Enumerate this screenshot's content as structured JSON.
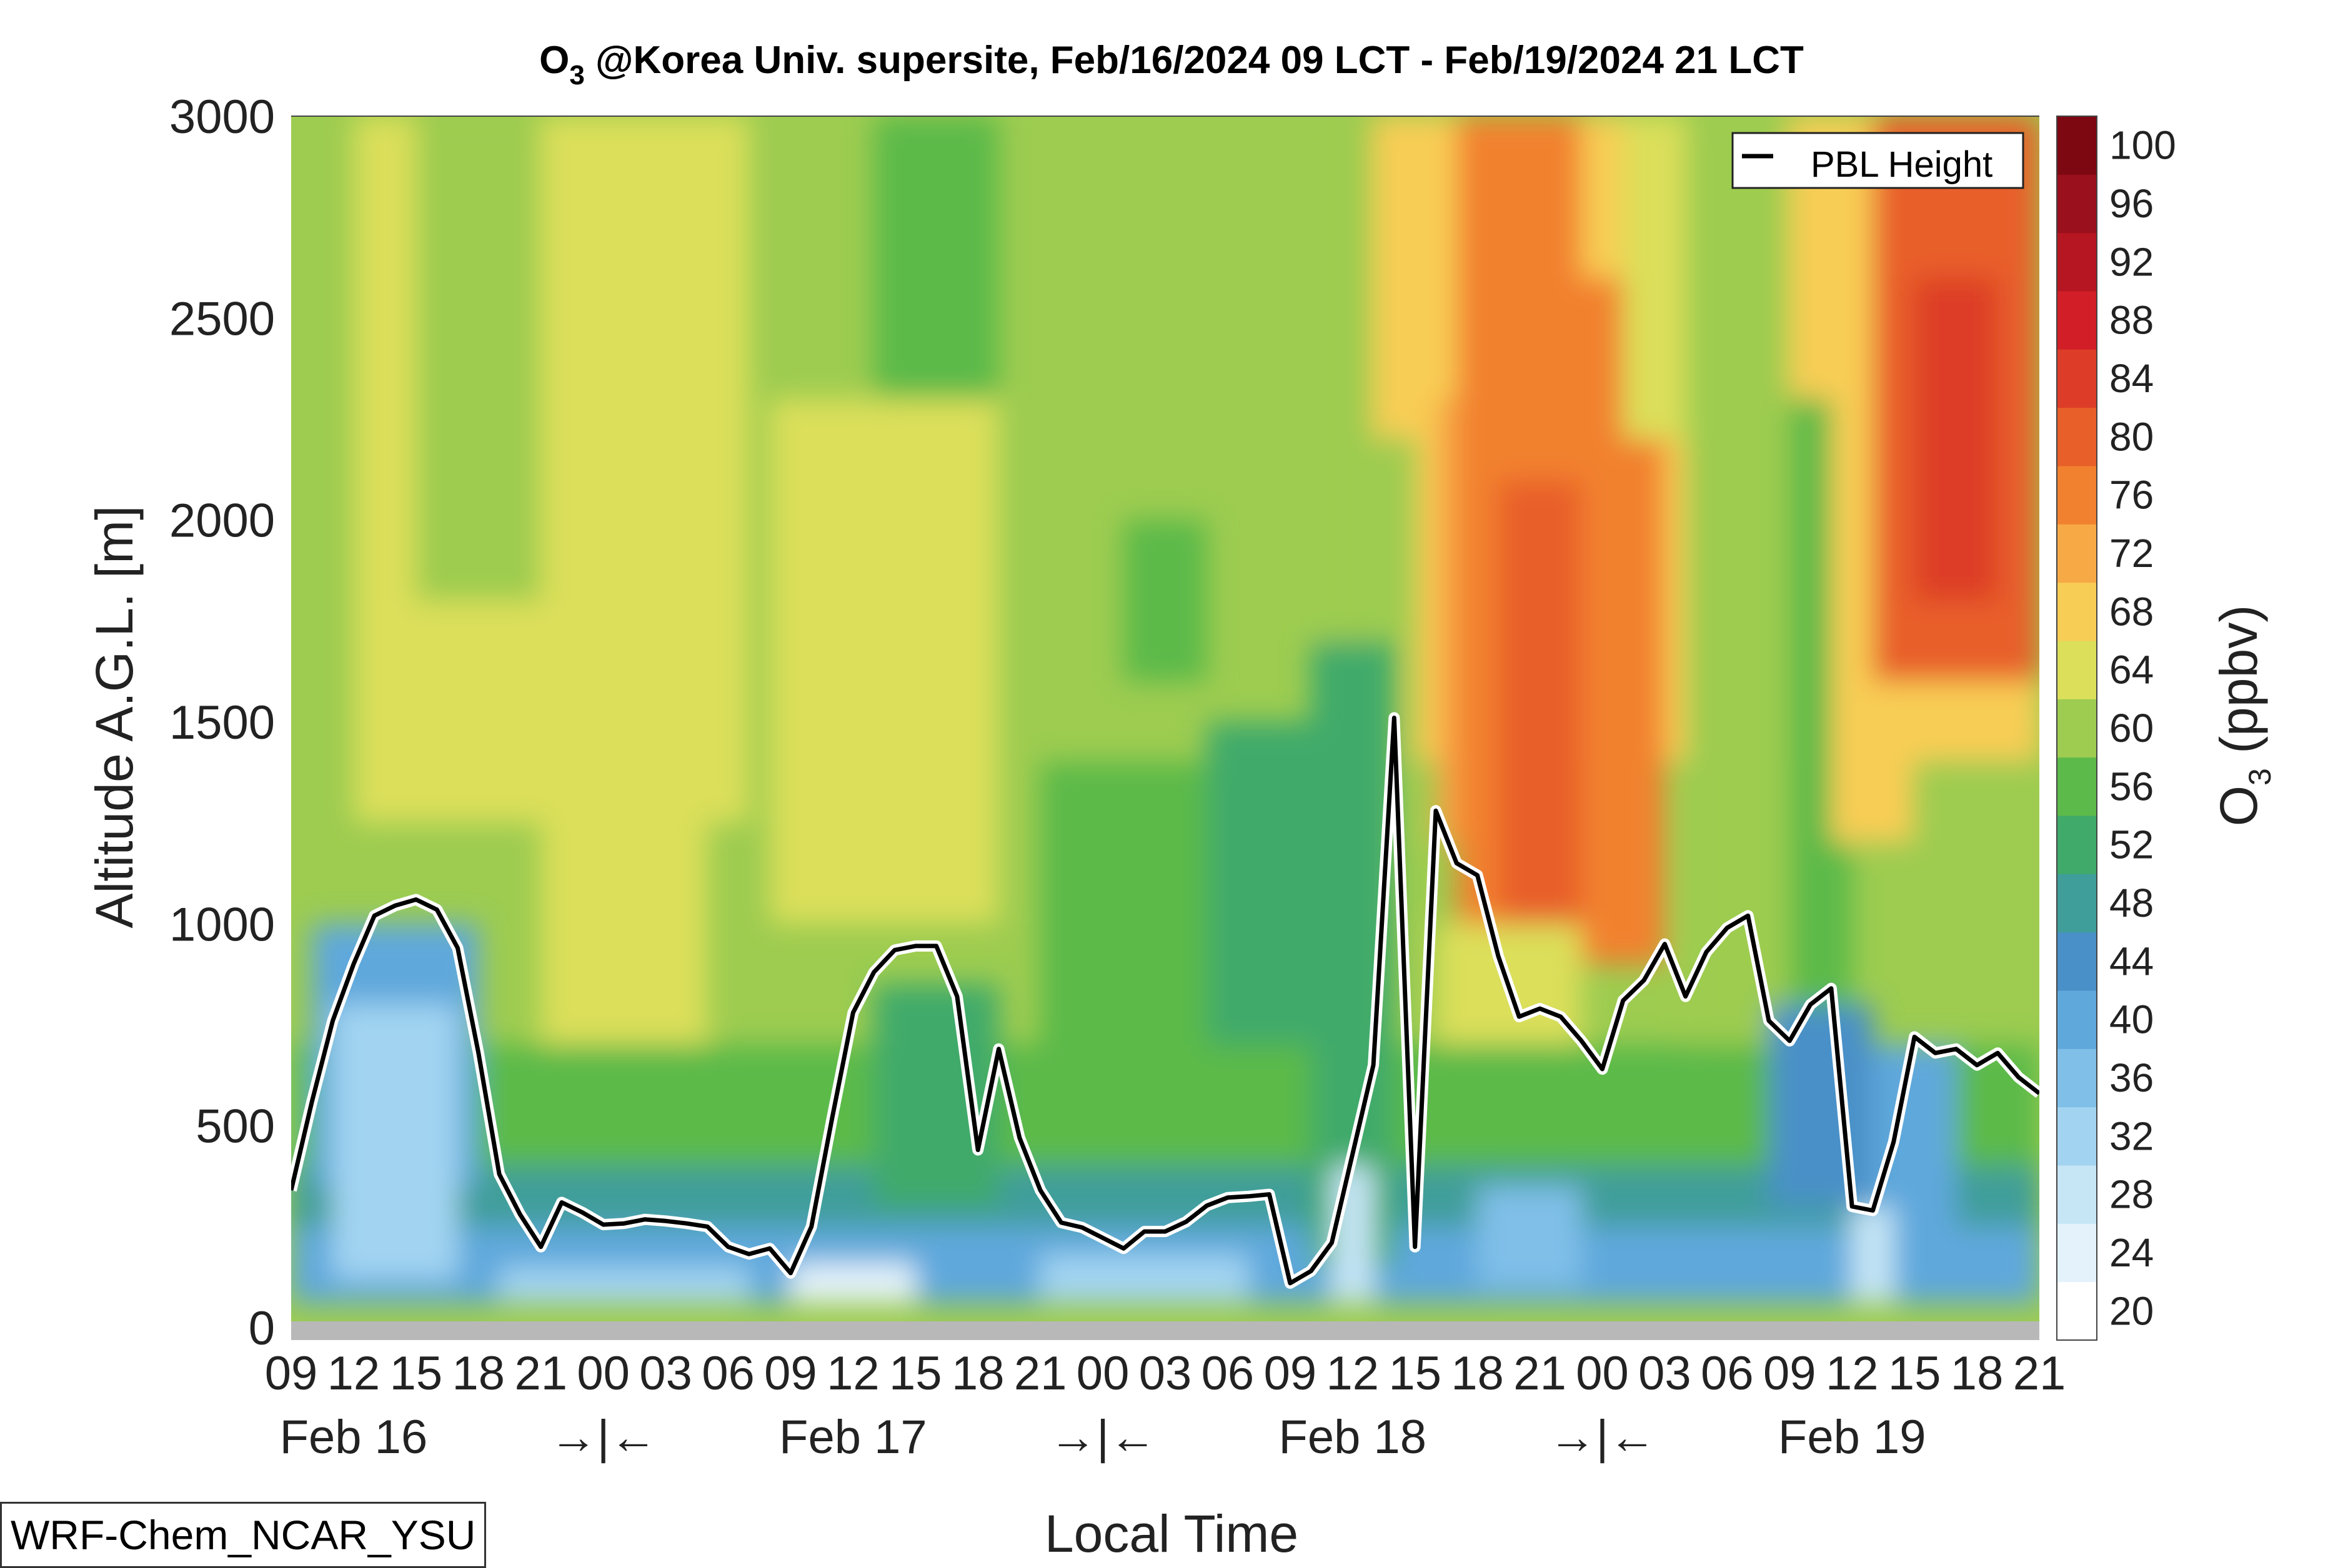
{
  "chart_data": {
    "type": "heatmap",
    "title": {
      "species": "O",
      "subscript": "3",
      "rest": " @Korea Univ. supersite, Feb/16/2024 09 LCT - Feb/19/2024 21 LCT"
    },
    "xlabel": "Local Time",
    "ylabel": "Altitude A.G.L. [m]",
    "colorbar_label": {
      "species": "O",
      "subscript": "3",
      "unit": " (ppbv)"
    },
    "x_tick_labels": [
      "09",
      "12",
      "15",
      "18",
      "21",
      "00",
      "03",
      "06",
      "09",
      "12",
      "15",
      "18",
      "21",
      "00",
      "03",
      "06",
      "09",
      "12",
      "15",
      "18",
      "21",
      "00",
      "03",
      "06",
      "09",
      "12",
      "15",
      "18",
      "21"
    ],
    "date_labels": [
      "Feb 16",
      "→|←",
      "Feb 17",
      "→|←",
      "Feb 18",
      "→|←",
      "Feb 19"
    ],
    "x_range_hours": [
      0,
      84
    ],
    "ylim": [
      0,
      3000
    ],
    "y_ticks": [
      0,
      500,
      1000,
      1500,
      2000,
      2500,
      3000
    ],
    "colorbar": {
      "levels": [
        20,
        24,
        28,
        32,
        36,
        40,
        44,
        48,
        52,
        56,
        60,
        64,
        68,
        72,
        76,
        80,
        84,
        88,
        92,
        96,
        100
      ],
      "colors": [
        "#ffffff",
        "#e3f2fb",
        "#c6e6f6",
        "#a2d4f1",
        "#7fbfe8",
        "#5ea8dc",
        "#4a90c8",
        "#3f9e9a",
        "#3faa6a",
        "#5cba4a",
        "#9dcc50",
        "#dbdf5a",
        "#f8cd55",
        "#f7a946",
        "#f2812f",
        "#e85f2a",
        "#dd3d28",
        "#d21f27",
        "#b51621",
        "#9a101c",
        "#7d0812"
      ],
      "tick_labels": [
        "20",
        "24",
        "28",
        "32",
        "36",
        "40",
        "44",
        "48",
        "52",
        "56",
        "60",
        "64",
        "68",
        "72",
        "76",
        "80",
        "84",
        "88",
        "92",
        "96",
        "100"
      ]
    },
    "series": [
      {
        "name": "PBL Height",
        "hours": [
          0,
          1,
          2,
          3,
          4,
          5,
          6,
          7,
          8,
          9,
          10,
          11,
          12,
          13,
          14,
          15,
          16,
          17,
          18,
          19,
          20,
          21,
          22,
          23,
          24,
          25,
          26,
          27,
          28,
          29,
          30,
          31,
          32,
          33,
          34,
          35,
          36,
          37,
          38,
          39,
          40,
          41,
          42,
          43,
          44,
          45,
          46,
          47,
          48,
          49,
          50,
          51,
          52,
          53,
          54,
          55,
          56,
          57,
          58,
          59,
          60,
          61,
          62,
          63,
          64,
          65,
          66,
          67,
          68,
          69,
          70,
          71,
          72,
          73,
          74,
          75,
          76,
          77,
          78,
          79,
          80,
          81,
          82,
          83,
          84
        ],
        "values": [
          340,
          560,
          760,
          900,
          1020,
          1045,
          1060,
          1035,
          940,
          680,
          380,
          280,
          200,
          310,
          285,
          255,
          258,
          268,
          264,
          258,
          250,
          200,
          182,
          196,
          135,
          250,
          520,
          780,
          880,
          935,
          945,
          945,
          820,
          440,
          690,
          470,
          340,
          260,
          248,
          222,
          196,
          238,
          238,
          262,
          302,
          322,
          325,
          330,
          110,
          140,
          210,
          430,
          650,
          1510,
          200,
          1280,
          1150,
          1120,
          920,
          770,
          790,
          770,
          710,
          640,
          810,
          860,
          950,
          820,
          930,
          990,
          1020,
          760,
          710,
          800,
          840,
          300,
          290,
          460,
          720,
          680,
          690,
          650,
          680,
          620,
          580
        ]
      }
    ],
    "legend_entries": [
      "PBL Height"
    ],
    "legend_position": "top-right",
    "model_label": "WRF-Chem_NCAR_YSU"
  }
}
